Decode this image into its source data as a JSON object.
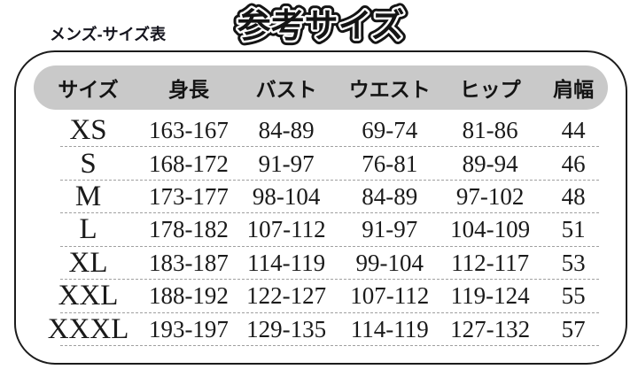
{
  "header": {
    "label": "メンズ-サイズ表",
    "stylized_title": "参考サイズ"
  },
  "colors": {
    "header_pill_bg": "#c9c9c9",
    "frame_border": "#1c1c1c",
    "text": "#1a1a1a",
    "dashed_divider": "#a0a0a0",
    "title_fill": "#141414",
    "title_inner_outline": "#ffffff"
  },
  "chart_data": {
    "type": "table",
    "title": "参考サイズ",
    "subtitle": "メンズ-サイズ表",
    "columns": [
      "サイズ",
      "身長",
      "バスト",
      "ウエスト",
      "ヒップ",
      "肩幅"
    ],
    "rows": [
      [
        "XS",
        "163-167",
        "84-89",
        "69-74",
        "81-86",
        "44"
      ],
      [
        "S",
        "168-172",
        "91-97",
        "76-81",
        "89-94",
        "46"
      ],
      [
        "M",
        "173-177",
        "98-104",
        "84-89",
        "97-102",
        "48"
      ],
      [
        "L",
        "178-182",
        "107-112",
        "91-97",
        "104-109",
        "51"
      ],
      [
        "XL",
        "183-187",
        "114-119",
        "99-104",
        "112-117",
        "53"
      ],
      [
        "XXL",
        "188-192",
        "122-127",
        "107-112",
        "119-124",
        "55"
      ],
      [
        "XXXL",
        "193-197",
        "129-135",
        "114-119",
        "127-132",
        "57"
      ]
    ]
  }
}
